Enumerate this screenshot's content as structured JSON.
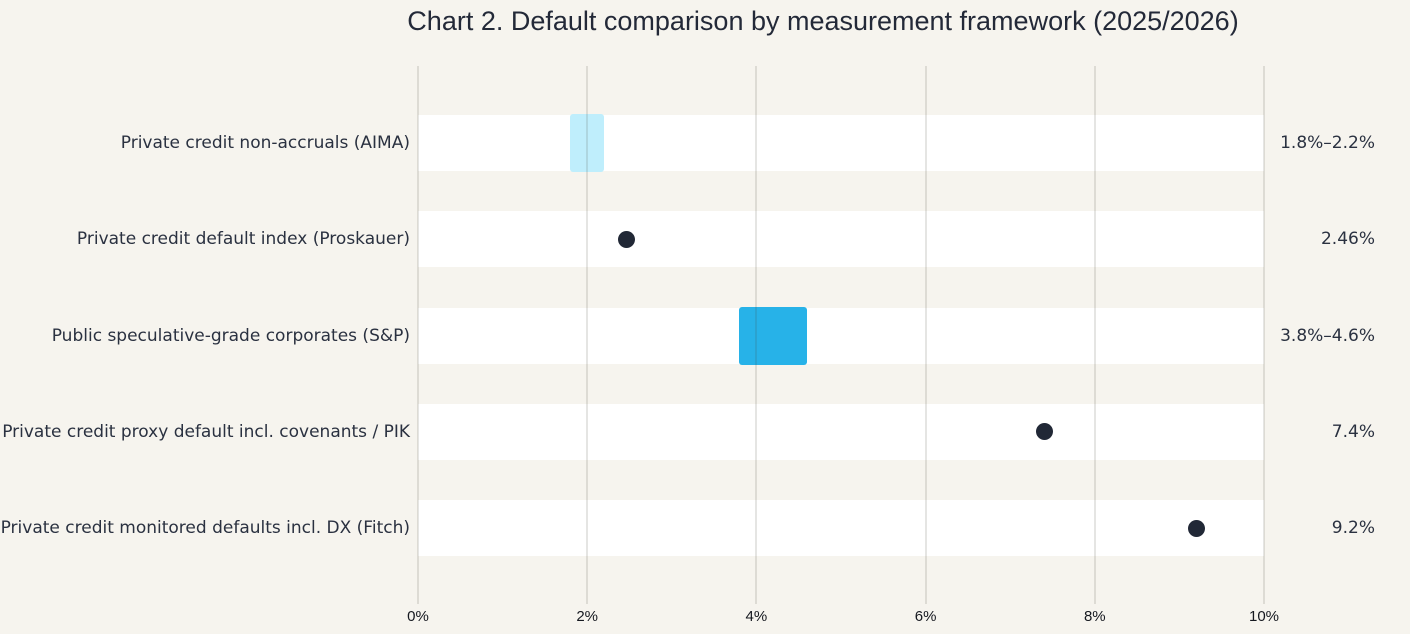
{
  "title": "Chart 2. Default comparison by measurement framework (2025/2026)",
  "colors": {
    "background": "#f6f4ee",
    "band": "#ffffff",
    "gridline": "rgba(70, 70, 60, 0.14)",
    "range_light": "#bfeefc",
    "range_bright": "#27b2e8",
    "dot": "#212836",
    "text": "#2a3140"
  },
  "chart_data": {
    "type": "bar",
    "subtype": "horizontal-range-and-point",
    "title": "Chart 2. Default comparison by measurement framework (2025/2026)",
    "xlabel": "",
    "ylabel": "",
    "x_axis": {
      "min": 0,
      "max": 10,
      "tick_values": [
        0,
        2,
        4,
        6,
        8,
        10
      ],
      "tick_labels": [
        "0%",
        "2%",
        "4%",
        "6%",
        "8%",
        "10%"
      ],
      "grid": true
    },
    "rows": [
      {
        "label": "Private credit non-accruals (AIMA)",
        "kind": "range",
        "low": 1.8,
        "high": 2.2,
        "value_label": "1.8%–2.2%",
        "color": "#bfeefc"
      },
      {
        "label": "Private credit default index (Proskauer)",
        "kind": "point",
        "value": 2.46,
        "value_label": "2.46%",
        "color": "#212836"
      },
      {
        "label": "Public speculative-grade corporates (S&P)",
        "kind": "range",
        "low": 3.8,
        "high": 4.6,
        "value_label": "3.8%–4.6%",
        "color": "#27b2e8"
      },
      {
        "label": "Private credit proxy default incl. covenants / PIK",
        "kind": "point",
        "value": 7.4,
        "value_label": "7.4%",
        "color": "#212836"
      },
      {
        "label": "Private credit monitored defaults incl. DX (Fitch)",
        "kind": "point",
        "value": 9.2,
        "value_label": "9.2%",
        "color": "#212836"
      }
    ]
  }
}
